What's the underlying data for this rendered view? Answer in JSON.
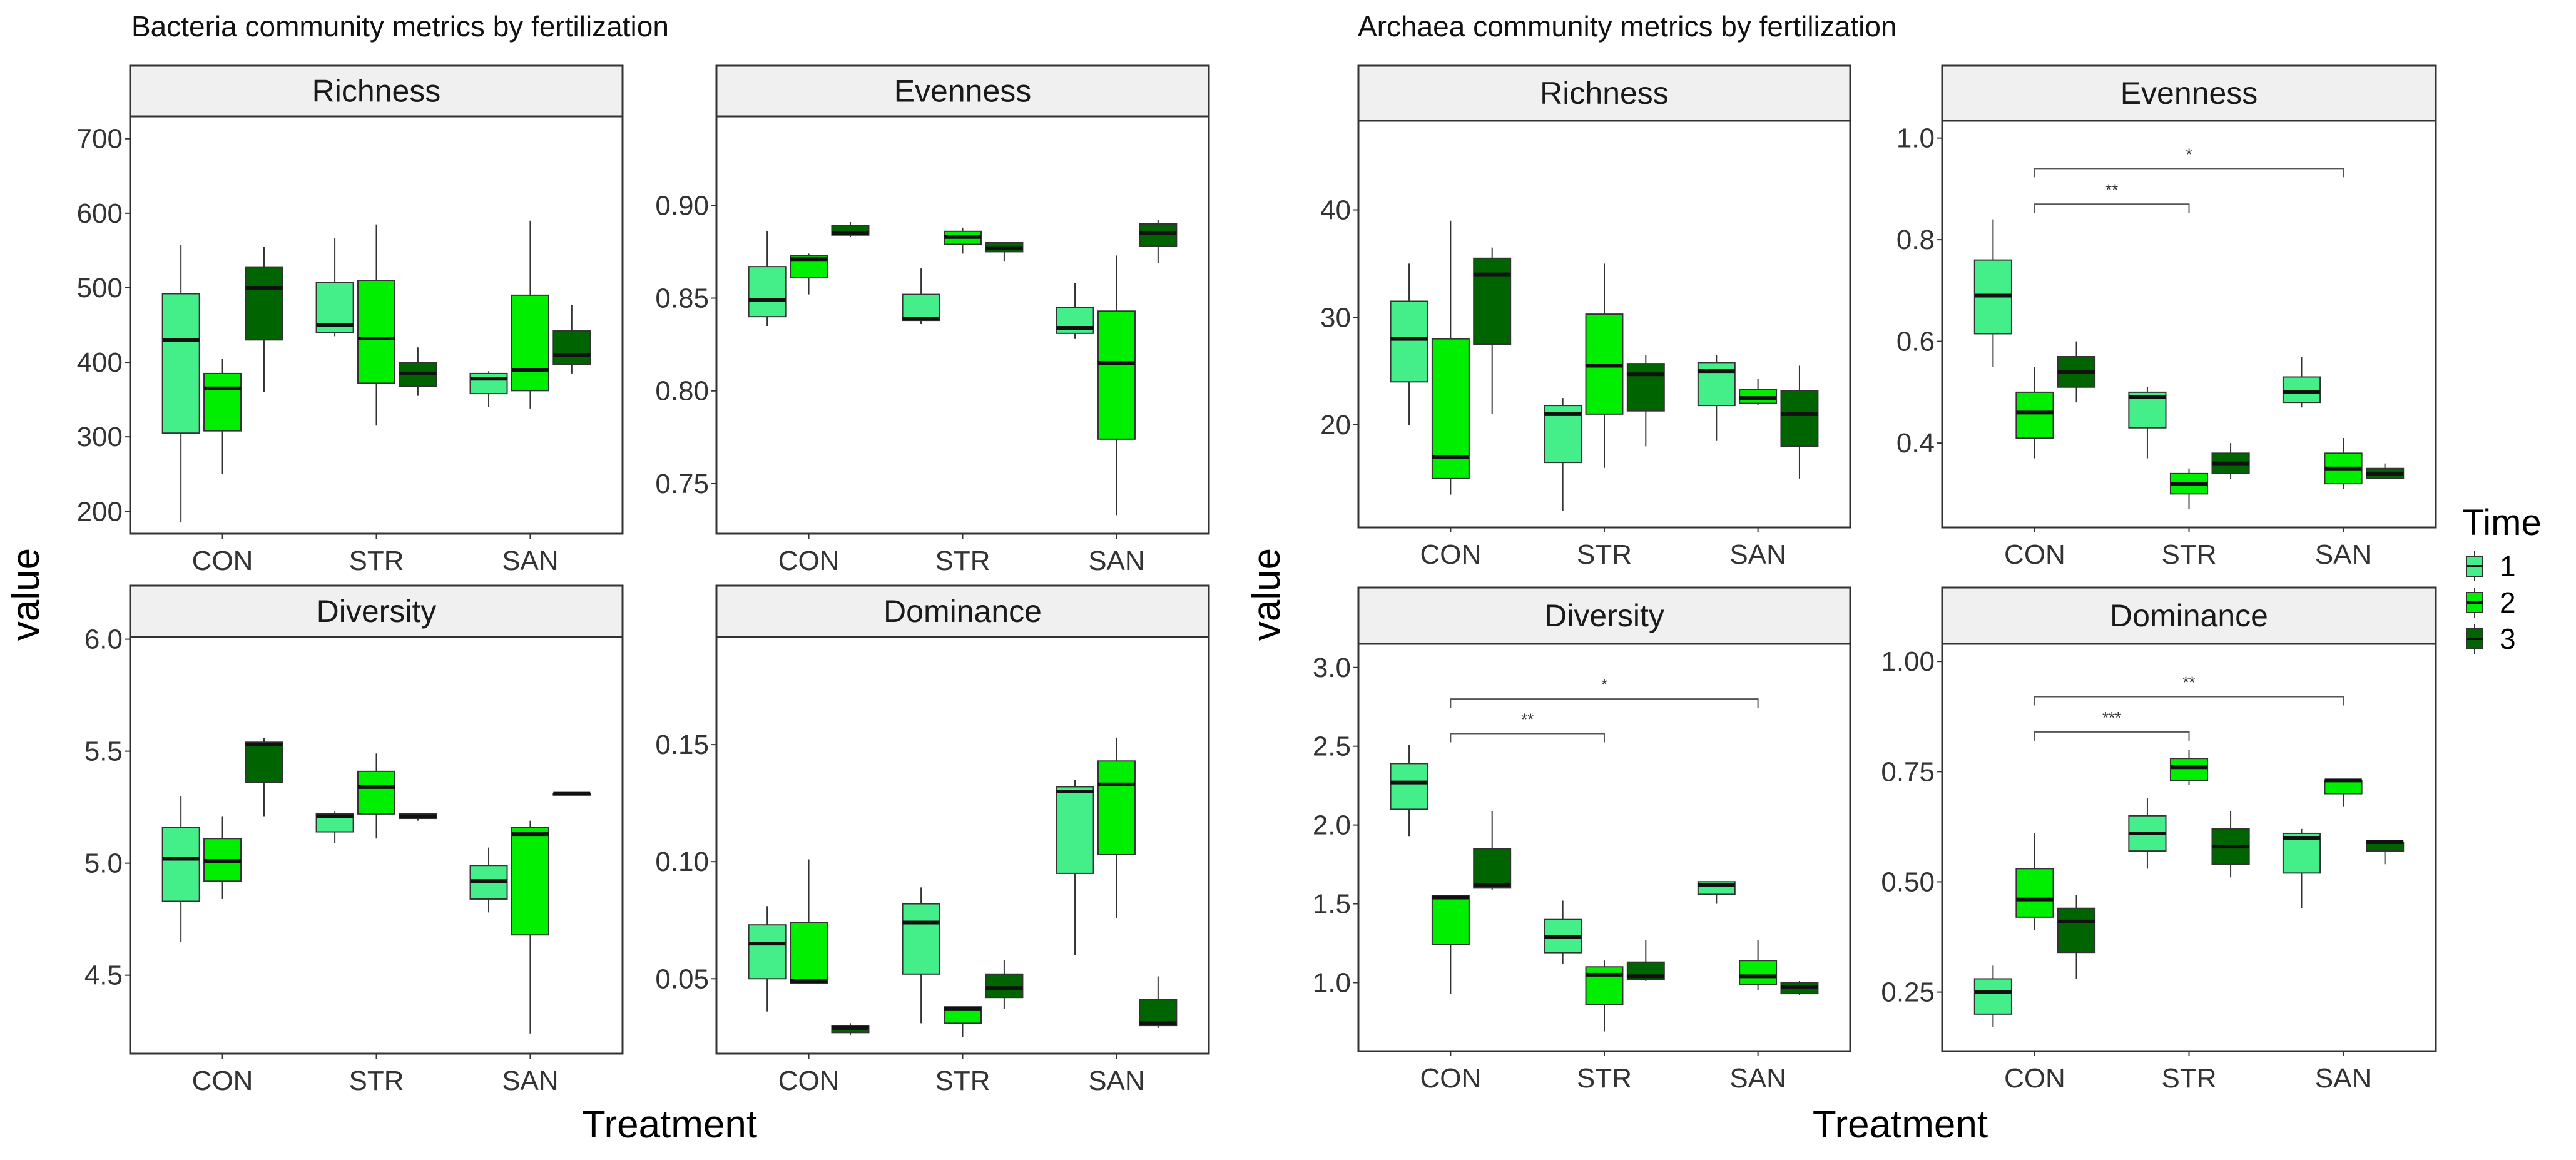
{
  "colors": {
    "time1": "#44EE88",
    "time2": "#00EE00",
    "time3": "#006400",
    "strip": "#F0F0F0",
    "frame": "#333333"
  },
  "axis_titles": {
    "y": "value",
    "x": "Treatment"
  },
  "legend": {
    "title": "Time",
    "items": [
      {
        "label": "1",
        "color_key": "time1"
      },
      {
        "label": "2",
        "color_key": "time2"
      },
      {
        "label": "3",
        "color_key": "time3"
      }
    ]
  },
  "chart_data": [
    {
      "title": "Bacteria community metrics by fertilization",
      "type": "boxplot",
      "categories": [
        "CON",
        "STR",
        "SAN"
      ],
      "series_names": [
        "1",
        "2",
        "3"
      ],
      "xlabel": "Treatment",
      "ylabel": "value",
      "panels": [
        {
          "name": "Richness",
          "ylim": [
            170,
            730
          ],
          "yticks": [
            200,
            300,
            400,
            500,
            600,
            700
          ],
          "yticklabels": [
            "200",
            "300",
            "400",
            "500",
            "600",
            "700"
          ],
          "boxes": [
            [
              [
                185,
                305,
                430,
                492,
                557
              ],
              [
                250,
                308,
                365,
                385,
                405
              ],
              [
                360,
                430,
                500,
                528,
                555
              ]
            ],
            [
              [
                435,
                440,
                450,
                507,
                567
              ],
              [
                315,
                372,
                432,
                510,
                585
              ],
              [
                355,
                368,
                385,
                400,
                420
              ]
            ],
            [
              [
                340,
                358,
                378,
                385,
                388
              ],
              [
                338,
                362,
                390,
                490,
                590
              ],
              [
                385,
                397,
                410,
                442,
                477
              ]
            ]
          ],
          "brackets": []
        },
        {
          "name": "Evenness",
          "ylim": [
            0.723,
            0.948
          ],
          "yticks": [
            0.75,
            0.8,
            0.85,
            0.9
          ],
          "yticklabels": [
            "0.75",
            "0.80",
            "0.85",
            "0.90"
          ],
          "boxes": [
            [
              [
                0.835,
                0.84,
                0.849,
                0.867,
                0.886
              ],
              [
                0.852,
                0.861,
                0.871,
                0.873,
                0.874
              ],
              [
                0.883,
                0.884,
                0.885,
                0.889,
                0.891
              ]
            ],
            [
              [
                0.836,
                0.838,
                0.839,
                0.852,
                0.866
              ],
              [
                0.874,
                0.879,
                0.883,
                0.886,
                0.888
              ],
              [
                0.87,
                0.875,
                0.877,
                0.88,
                0.88
              ]
            ],
            [
              [
                0.828,
                0.831,
                0.834,
                0.845,
                0.858
              ],
              [
                0.733,
                0.774,
                0.815,
                0.843,
                0.873
              ],
              [
                0.869,
                0.878,
                0.885,
                0.89,
                0.892
              ]
            ]
          ],
          "brackets": []
        },
        {
          "name": "Diversity",
          "ylim": [
            4.15,
            6.01
          ],
          "yticks": [
            4.5,
            5.0,
            5.5,
            6.0
          ],
          "yticklabels": [
            "4.5",
            "5.0",
            "5.5",
            "6.0"
          ],
          "boxes": [
            [
              [
                4.65,
                4.83,
                5.02,
                5.16,
                5.3
              ],
              [
                4.84,
                4.92,
                5.01,
                5.11,
                5.21
              ],
              [
                5.21,
                5.36,
                5.53,
                5.54,
                5.56
              ]
            ],
            [
              [
                5.09,
                5.14,
                5.21,
                5.22,
                5.23
              ],
              [
                5.11,
                5.22,
                5.34,
                5.41,
                5.49
              ],
              [
                5.19,
                5.2,
                5.21,
                5.22,
                5.22
              ]
            ],
            [
              [
                4.78,
                4.84,
                4.92,
                4.99,
                5.07
              ],
              [
                4.24,
                4.68,
                5.13,
                5.16,
                5.19
              ],
              [
                5.31,
                5.31,
                5.31,
                5.31,
                5.31
              ]
            ]
          ],
          "brackets": []
        },
        {
          "name": "Dominance",
          "ylim": [
            0.018,
            0.196
          ],
          "yticks": [
            0.05,
            0.1,
            0.15
          ],
          "yticklabels": [
            "0.05",
            "0.10",
            "0.15"
          ],
          "boxes": [
            [
              [
                0.036,
                0.05,
                0.065,
                0.073,
                0.081
              ],
              [
                0.048,
                0.048,
                0.049,
                0.074,
                0.101
              ],
              [
                0.026,
                0.027,
                0.029,
                0.03,
                0.031
              ]
            ],
            [
              [
                0.031,
                0.052,
                0.074,
                0.082,
                0.089
              ],
              [
                0.025,
                0.031,
                0.037,
                0.038,
                0.038
              ],
              [
                0.037,
                0.042,
                0.046,
                0.052,
                0.058
              ]
            ],
            [
              [
                0.06,
                0.095,
                0.13,
                0.132,
                0.135
              ],
              [
                0.076,
                0.103,
                0.133,
                0.143,
                0.153
              ],
              [
                0.029,
                0.03,
                0.031,
                0.041,
                0.051
              ]
            ]
          ],
          "brackets": []
        }
      ]
    },
    {
      "title": "Archaea community metrics by fertilization",
      "type": "boxplot",
      "categories": [
        "CON",
        "STR",
        "SAN"
      ],
      "series_names": [
        "1",
        "2",
        "3"
      ],
      "xlabel": "Treatment",
      "ylabel": "value",
      "panels": [
        {
          "name": "Richness",
          "ylim": [
            10.45,
            48.3
          ],
          "yticks": [
            20,
            30,
            40
          ],
          "yticklabels": [
            "20",
            "30",
            "40"
          ],
          "boxes": [
            [
              [
                20,
                24,
                28,
                31.5,
                35
              ],
              [
                13.5,
                15,
                17,
                28,
                39
              ],
              [
                21,
                27.5,
                34,
                35.5,
                36.5
              ]
            ],
            [
              [
                12,
                16.5,
                21,
                21.8,
                22.5
              ],
              [
                16,
                21,
                25.5,
                30.3,
                35
              ],
              [
                18,
                21.3,
                24.7,
                25.7,
                26.5
              ]
            ],
            [
              [
                18.5,
                21.8,
                25,
                25.8,
                26.5
              ],
              [
                21.8,
                22,
                22.5,
                23.3,
                24.3
              ],
              [
                15,
                18,
                21,
                23.2,
                25.5
              ]
            ]
          ],
          "brackets": []
        },
        {
          "name": "Evenness",
          "ylim": [
            0.234,
            1.034
          ],
          "yticks": [
            0.4,
            0.6,
            0.8,
            1.0
          ],
          "yticklabels": [
            "0.4",
            "0.6",
            "0.8",
            "1.0"
          ],
          "boxes": [
            [
              [
                0.55,
                0.615,
                0.69,
                0.76,
                0.84
              ],
              [
                0.37,
                0.41,
                0.46,
                0.5,
                0.55
              ],
              [
                0.48,
                0.51,
                0.54,
                0.57,
                0.6
              ]
            ],
            [
              [
                0.37,
                0.43,
                0.49,
                0.5,
                0.51
              ],
              [
                0.27,
                0.3,
                0.32,
                0.34,
                0.35
              ],
              [
                0.33,
                0.34,
                0.36,
                0.38,
                0.4
              ]
            ],
            [
              [
                0.47,
                0.48,
                0.5,
                0.53,
                0.57
              ],
              [
                0.31,
                0.32,
                0.35,
                0.38,
                0.41
              ],
              [
                0.33,
                0.33,
                0.34,
                0.35,
                0.36
              ]
            ]
          ],
          "brackets": [
            {
              "from": "CON",
              "to": "STR",
              "y": 0.87,
              "label": "**"
            },
            {
              "from": "CON",
              "to": "SAN",
              "y": 0.94,
              "label": "*"
            }
          ]
        },
        {
          "name": "Diversity",
          "ylim": [
            0.565,
            3.15
          ],
          "yticks": [
            1.0,
            1.5,
            2.0,
            2.5,
            3.0
          ],
          "yticklabels": [
            "1.0",
            "1.5",
            "2.0",
            "2.5",
            "3.0"
          ],
          "boxes": [
            [
              [
                1.93,
                2.1,
                2.27,
                2.39,
                2.51
              ],
              [
                0.93,
                1.24,
                1.54,
                1.55,
                1.55
              ],
              [
                1.59,
                1.6,
                1.62,
                1.85,
                2.09
              ]
            ],
            [
              [
                1.12,
                1.19,
                1.29,
                1.4,
                1.52
              ],
              [
                0.69,
                0.86,
                1.05,
                1.1,
                1.14
              ],
              [
                1.01,
                1.02,
                1.04,
                1.13,
                1.27
              ]
            ],
            [
              [
                1.5,
                1.56,
                1.62,
                1.64,
                1.64
              ],
              [
                0.95,
                0.99,
                1.04,
                1.14,
                1.27
              ],
              [
                0.92,
                0.93,
                0.97,
                1.0,
                1.01
              ]
            ]
          ],
          "brackets": [
            {
              "from": "CON",
              "to": "STR",
              "y": 2.58,
              "label": "**"
            },
            {
              "from": "CON",
              "to": "SAN",
              "y": 2.8,
              "label": "*"
            }
          ]
        },
        {
          "name": "Dominance",
          "ylim": [
            0.116,
            1.04
          ],
          "yticks": [
            0.25,
            0.5,
            0.75,
            1.0
          ],
          "yticklabels": [
            "0.25",
            "0.50",
            "0.75",
            "1.00"
          ],
          "boxes": [
            [
              [
                0.17,
                0.2,
                0.25,
                0.28,
                0.31
              ],
              [
                0.39,
                0.42,
                0.46,
                0.53,
                0.61
              ],
              [
                0.28,
                0.34,
                0.41,
                0.44,
                0.47
              ]
            ],
            [
              [
                0.53,
                0.57,
                0.61,
                0.65,
                0.69
              ],
              [
                0.72,
                0.73,
                0.76,
                0.78,
                0.8
              ],
              [
                0.51,
                0.54,
                0.58,
                0.62,
                0.66
              ]
            ],
            [
              [
                0.44,
                0.52,
                0.6,
                0.61,
                0.62
              ],
              [
                0.67,
                0.7,
                0.73,
                0.73,
                0.73
              ],
              [
                0.54,
                0.57,
                0.59,
                0.59,
                0.59
              ]
            ]
          ],
          "brackets": [
            {
              "from": "CON",
              "to": "STR",
              "y": 0.84,
              "label": "***"
            },
            {
              "from": "CON",
              "to": "SAN",
              "y": 0.92,
              "label": "**"
            }
          ]
        }
      ]
    }
  ]
}
